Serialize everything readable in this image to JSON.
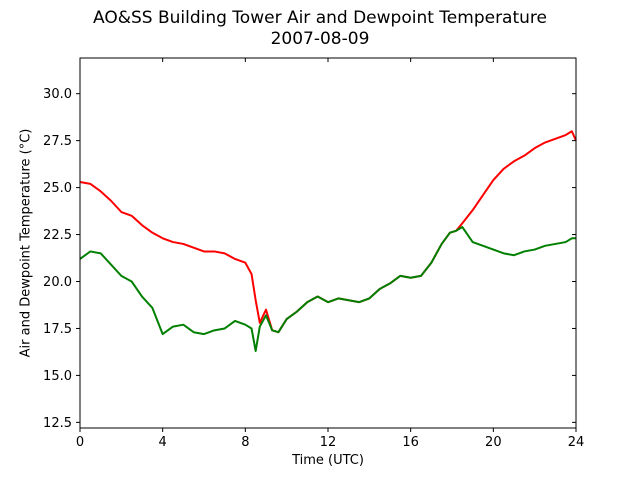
{
  "chart_data": {
    "type": "line",
    "title": "AO&SS Building Tower Air and Dewpoint Temperature",
    "subtitle": "2007-08-09",
    "xlabel": "Time (UTC)",
    "ylabel": "Air and Dewpoint Temperature (°C)",
    "xlim": [
      0,
      24
    ],
    "ylim": [
      12.2,
      31.9
    ],
    "xticks": [
      0,
      4,
      8,
      12,
      16,
      20,
      24
    ],
    "yticks": [
      12.5,
      15.0,
      17.5,
      20.0,
      22.5,
      25.0,
      27.5,
      30.0
    ],
    "grid": false,
    "legend": "none",
    "series": [
      {
        "color": "#ff0000",
        "x": [
          0,
          0.5,
          1.0,
          1.5,
          2.0,
          2.5,
          3.0,
          3.5,
          4.0,
          4.5,
          5.0,
          5.5,
          6.0,
          6.5,
          7.0,
          7.5,
          8.0,
          8.3,
          8.5,
          8.7,
          9.0,
          9.3,
          9.6,
          10.0,
          10.5,
          11.0,
          11.5,
          12.0,
          12.5,
          13.0,
          13.5,
          14.0,
          14.5,
          15.0,
          15.5,
          16.0,
          16.5,
          17.0,
          17.5,
          17.9,
          18.2,
          18.5,
          19.0,
          19.5,
          20.0,
          20.5,
          21.0,
          21.5,
          22.0,
          22.5,
          23.0,
          23.5,
          23.8,
          24.0
        ],
        "values": [
          25.3,
          25.2,
          24.8,
          24.3,
          23.7,
          23.5,
          23.0,
          22.6,
          22.3,
          22.1,
          22.0,
          21.8,
          21.6,
          21.6,
          21.5,
          21.2,
          21.0,
          20.4,
          19.0,
          17.8,
          18.5,
          17.4,
          17.3,
          18.0,
          18.4,
          18.9,
          19.2,
          18.9,
          19.1,
          19.0,
          18.9,
          19.1,
          19.6,
          19.9,
          20.3,
          20.2,
          20.3,
          21.0,
          22.0,
          22.6,
          22.7,
          23.1,
          23.8,
          24.6,
          25.4,
          26.0,
          26.4,
          26.7,
          27.1,
          27.4,
          27.6,
          27.8,
          28.0,
          27.5
        ]
      },
      {
        "color": "#008000",
        "x": [
          0,
          0.5,
          1.0,
          1.5,
          2.0,
          2.5,
          3.0,
          3.5,
          4.0,
          4.5,
          5.0,
          5.5,
          6.0,
          6.5,
          7.0,
          7.5,
          8.0,
          8.3,
          8.5,
          8.7,
          9.0,
          9.3,
          9.6,
          10.0,
          10.5,
          11.0,
          11.5,
          12.0,
          12.5,
          13.0,
          13.5,
          14.0,
          14.5,
          15.0,
          15.5,
          16.0,
          16.5,
          17.0,
          17.5,
          17.9,
          18.2,
          18.5,
          19.0,
          19.5,
          20.0,
          20.5,
          21.0,
          21.5,
          22.0,
          22.5,
          23.0,
          23.5,
          23.8,
          24.0
        ],
        "values": [
          21.2,
          21.6,
          21.5,
          20.9,
          20.3,
          20.0,
          19.2,
          18.6,
          17.2,
          17.6,
          17.7,
          17.3,
          17.2,
          17.4,
          17.5,
          17.9,
          17.7,
          17.5,
          16.3,
          17.6,
          18.2,
          17.4,
          17.3,
          18.0,
          18.4,
          18.9,
          19.2,
          18.9,
          19.1,
          19.0,
          18.9,
          19.1,
          19.6,
          19.9,
          20.3,
          20.2,
          20.3,
          21.0,
          22.0,
          22.6,
          22.7,
          22.9,
          22.1,
          21.9,
          21.7,
          21.5,
          21.4,
          21.6,
          21.7,
          21.9,
          22.0,
          22.1,
          22.3,
          22.3
        ]
      }
    ]
  }
}
